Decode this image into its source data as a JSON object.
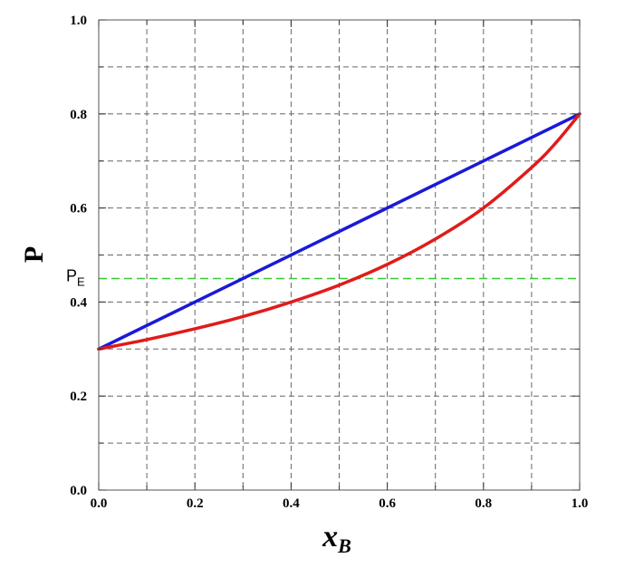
{
  "chart_data": {
    "type": "line",
    "title": "",
    "xlabel_main": "x",
    "xlabel_sub": "B",
    "ylabel": "P",
    "xlim": [
      0.0,
      1.0
    ],
    "ylim": [
      0.0,
      1.0
    ],
    "x_ticks": [
      "0.0",
      "0.2",
      "0.4",
      "0.6",
      "0.8",
      "1.0"
    ],
    "y_ticks": [
      "0.0",
      "0.2",
      "0.4",
      "0.6",
      "0.8",
      "1.0"
    ],
    "minor_grid_step": 0.1,
    "grid": true,
    "series": [
      {
        "color": "#1a1ad6",
        "x": [
          0.0,
          1.0
        ],
        "y": [
          0.3,
          0.8
        ]
      },
      {
        "color": "#e01b1b",
        "x": [
          0.0,
          0.1,
          0.2,
          0.3,
          0.4,
          0.5,
          0.6,
          0.7,
          0.8,
          0.9,
          0.95,
          1.0
        ],
        "y": [
          0.3,
          0.32,
          0.343,
          0.369,
          0.4,
          0.436,
          0.48,
          0.534,
          0.6,
          0.686,
          0.738,
          0.8
        ]
      }
    ],
    "reference_line": {
      "label_main": "P",
      "label_sub": "E",
      "y": 0.45,
      "color": "#33cc33"
    }
  }
}
